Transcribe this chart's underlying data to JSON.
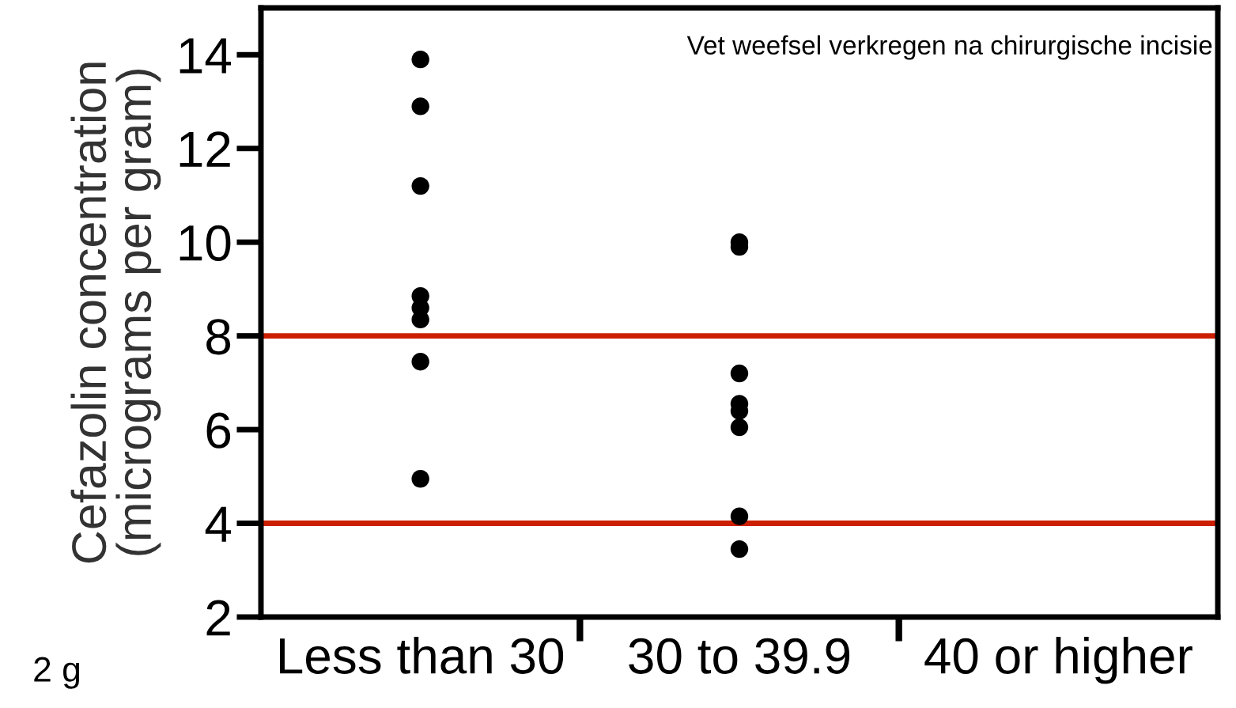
{
  "chart_data": {
    "type": "scatter",
    "ylabel": "Cefazolin concentration\n(micrograms per gram)",
    "categories": [
      "Less than 30",
      "30 to 39.9",
      "40 or higher"
    ],
    "series": [
      {
        "color": "#000000",
        "x": [
          "Less than 30",
          "Less than 30",
          "Less than 30",
          "Less than 30",
          "Less than 30",
          "Less than 30",
          "Less than 30",
          "Less than 30"
        ],
        "values": [
          13.9,
          12.9,
          11.2,
          8.85,
          8.6,
          8.35,
          7.45,
          4.95
        ]
      },
      {
        "color": "#000000",
        "x": [
          "30 to 39.9",
          "30 to 39.9",
          "30 to 39.9",
          "30 to 39.9",
          "30 to 39.9",
          "30 to 39.9",
          "30 to 39.9",
          "30 to 39.9"
        ],
        "values": [
          10.0,
          9.9,
          7.2,
          6.55,
          6.4,
          6.05,
          4.15,
          3.45
        ]
      }
    ],
    "ylim": [
      2,
      15
    ],
    "yticks": [
      2,
      4,
      6,
      8,
      10,
      12,
      14
    ],
    "ref_lines": [
      {
        "axis": "y",
        "value": 8,
        "color": "#cc1f00"
      },
      {
        "axis": "y",
        "value": 4,
        "color": "#cc1f00"
      }
    ],
    "annotations": [
      "Vet weefsel verkregen na chirurgische incisie",
      "2 g"
    ],
    "marker": "circle",
    "grid": false,
    "legend": false
  }
}
